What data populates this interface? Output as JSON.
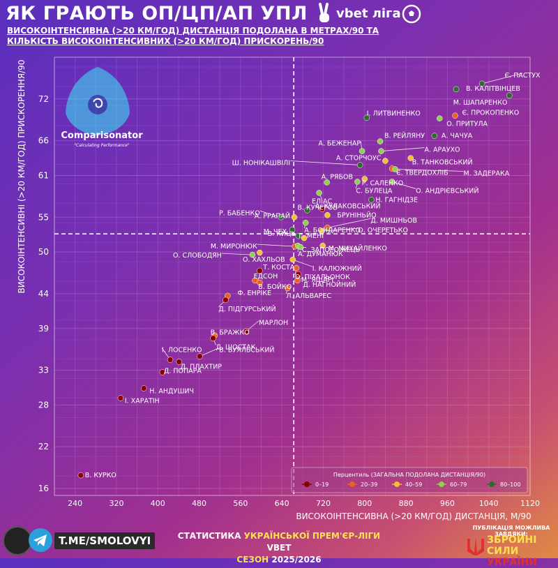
{
  "header": {
    "title": "ЯК ГРАЮТЬ ОП/ЦП/АП  УПЛ",
    "brand": "vbet ліга",
    "subtitle_line1": "ВИСОКОІНТЕНСИВНА (>20 КМ/ГОД) ДИСТАНЦІЯ ПОДОЛАНА В МЕТРАХ/90 ТА",
    "subtitle_line2": "КІЛЬКІСТЬ ВИСОКОІНТЕНСИВНИХ (>20 КМ/ГОД) ПРИСКОРЕНЬ/90"
  },
  "watermark": {
    "name": "Comparisonator",
    "tagline": "\"Calculating Performance\""
  },
  "footer": {
    "link": "T.ME/SMOLOVYI",
    "stats_prefix": "СТАТИСТИКА",
    "stats_middle": " УКРАЇНСЬКОЇ ПРЕМ'ЄР-ЛІГИ ",
    "stats_suffix": "VBET",
    "season_prefix": "СЕЗОН ",
    "season": "2025/2026",
    "support_text": "ПУБЛІКАЦІЯ МОЖЛИВА ЗАВДЯКИ:",
    "army_line1": "ЗБРОЙНІ СИЛИ",
    "army_line2": "УКРАЇНИ"
  },
  "colors": {
    "p0": "#8b0000",
    "p20": "#e8641e",
    "p40": "#f2c12e",
    "p60": "#8fd14f",
    "p80": "#2e6b2e"
  },
  "chart_data": {
    "type": "scatter",
    "xlabel": "ВИСОКОІНТЕНСИВНА (>20 КМ/ГОД) ДИСТАНЦІЯ, М/90",
    "ylabel": "ВИСОКОІНТЕНСИВНІ (>20 КМ/ГОД) ПРИСКОРЕННЯ/90",
    "xlim": [
      200,
      1120
    ],
    "ylim": [
      15,
      78
    ],
    "xticks": [
      240,
      320,
      400,
      480,
      560,
      640,
      720,
      800,
      880,
      960,
      1040,
      1120
    ],
    "yticks": [
      16,
      22,
      28,
      33,
      39,
      44,
      50,
      55,
      61,
      66,
      72
    ],
    "x_mean": 663,
    "y_mean": 52.6,
    "legend_title": "Перцентиль (ЗАГАЛЬНА ПОДОЛАНА ДИСТАНЦІЯ/90)",
    "legend": [
      {
        "label": "0–19",
        "key": "p0"
      },
      {
        "label": "20–39",
        "key": "p20"
      },
      {
        "label": "40–59",
        "key": "p40"
      },
      {
        "label": "60–79",
        "key": "p60"
      },
      {
        "label": "80–100",
        "key": "p80"
      }
    ],
    "points": [
      {
        "name": "Є. ПАСТУХ",
        "x": 1027,
        "y": 74.2,
        "p": "p80"
      },
      {
        "name": "В. КАЛІТВІНЦЕВ",
        "x": 977,
        "y": 73.4,
        "p": "p80"
      },
      {
        "name": "М. ШАПАРЕНКО",
        "x": 1080,
        "y": 72.5,
        "p": "p80"
      },
      {
        "name": "Є. ПРОКОПЕНКО",
        "x": 975,
        "y": 69.6,
        "p": "p20"
      },
      {
        "name": "І. ЛИТВИНЕНКО",
        "x": 804,
        "y": 69.3,
        "p": "p80"
      },
      {
        "name": "О. ПРИТУЛА",
        "x": 945,
        "y": 69.2,
        "p": "p60"
      },
      {
        "name": "А. ЧАЧУА",
        "x": 935,
        "y": 66.7,
        "p": "p80"
      },
      {
        "name": "В. РЕЙЛЯНУ",
        "x": 830,
        "y": 65.9,
        "p": "p60"
      },
      {
        "name": "А. БЕЖЕНАР",
        "x": 795,
        "y": 64.5,
        "p": "p60"
      },
      {
        "name": "А. АРАУХО",
        "x": 832,
        "y": 64.5,
        "p": "p60"
      },
      {
        "name": "А. СТОРЧОУС",
        "x": 840,
        "y": 63.1,
        "p": "p40"
      },
      {
        "name": "В. ТАНКОВСЬКИЙ",
        "x": 889,
        "y": 63.5,
        "p": "p40"
      },
      {
        "name": "Є. ТВЕРДОХЛІБ",
        "x": 853,
        "y": 62.0,
        "p": "p20"
      },
      {
        "name": "М. ЗАДЕРАКА",
        "x": 859,
        "y": 61.9,
        "p": "p60"
      },
      {
        "name": "Ш. НОНІКАШВІЛІ",
        "x": 791,
        "y": 62.5,
        "p": "p80"
      },
      {
        "name": "Р. САЛЕНКО",
        "x": 800,
        "y": 60.5,
        "p": "p40"
      },
      {
        "name": "С. БУЛЕЦА",
        "x": 786,
        "y": 60.1,
        "p": "p60"
      },
      {
        "name": "А. РЯБОВ",
        "x": 727,
        "y": 60.0,
        "p": "p60"
      },
      {
        "name": "О. АНДРІЄВСЬКИЙ",
        "x": 853,
        "y": 60.1,
        "p": "p60"
      },
      {
        "name": "ЕЛІАС",
        "x": 712,
        "y": 58.5,
        "p": "p60"
      },
      {
        "name": "Н. ГАГНІДЗЕ",
        "x": 813,
        "y": 57.5,
        "p": "p80"
      },
      {
        "name": "В. КУЧЕРОВ",
        "x": 689,
        "y": 56.0,
        "p": "p80"
      },
      {
        "name": "А. КУЛАКОВСЬКИЙ",
        "x": 718,
        "y": 56.2,
        "p": "p0"
      },
      {
        "name": "Р. БАБЕНКО",
        "x": 638,
        "y": 55.0,
        "p": "p80"
      },
      {
        "name": "А. РРАПАЙ",
        "x": 664,
        "y": 55.0,
        "p": "p40"
      },
      {
        "name": "БРУНІНЬЙО",
        "x": 728,
        "y": 55.3,
        "p": "p40"
      },
      {
        "name": "А. БОНДАРЕНКО",
        "x": 686,
        "y": 54.2,
        "p": "p60"
      },
      {
        "name": "Д. МИШНЬОВ",
        "x": 728,
        "y": 53.5,
        "p": "p20"
      },
      {
        "name": "М. ЧЕХ",
        "x": 660,
        "y": 53.2,
        "p": "p80"
      },
      {
        "name": "О. ОЧЕРЕТЬКО",
        "x": 717,
        "y": 53.0,
        "p": "p40"
      },
      {
        "name": "В. КИЦЬ",
        "x": 672,
        "y": 52.3,
        "p": "p80"
      },
      {
        "name": "Г. МЕНІ",
        "x": 683,
        "y": 52.0,
        "p": "p40"
      },
      {
        "name": "М. МИРОНЮК",
        "x": 665,
        "y": 50.8,
        "p": "p20"
      },
      {
        "name": "А. ДУМАНЮК",
        "x": 671,
        "y": 50.9,
        "p": "p60"
      },
      {
        "name": "С. ЗАПОРОЖЕЦЬ",
        "x": 676,
        "y": 50.7,
        "p": "p60"
      },
      {
        "name": "М. МИХАЙЛЕНКО",
        "x": 719,
        "y": 50.9,
        "p": "p40"
      },
      {
        "name": "О. СЛОБОДЯН",
        "x": 583,
        "y": 49.6,
        "p": "p60"
      },
      {
        "name": "О. ХАХЛЬОВ",
        "x": 597,
        "y": 49.9,
        "p": "p40"
      },
      {
        "name": "І. КАЛЮЖНИЙ",
        "x": 661,
        "y": 48.9,
        "p": "p40"
      },
      {
        "name": "Т. КОСТА",
        "x": 597,
        "y": 47.3,
        "p": "p0"
      },
      {
        "name": "О. ПІХАЛЬОНОК",
        "x": 668,
        "y": 47.7,
        "p": "p20"
      },
      {
        "name": "ЕДСОН",
        "x": 588,
        "y": 45.9,
        "p": "p20"
      },
      {
        "name": "М. ЯЩАРІ",
        "x": 672,
        "y": 46.8,
        "p": "p0"
      },
      {
        "name": "В. БОЙКО",
        "x": 597,
        "y": 45.6,
        "p": "p20"
      },
      {
        "name": "Д. НАГНОЙНИЙ",
        "x": 670,
        "y": 45.9,
        "p": "p20"
      },
      {
        "name": "Л. АЛЬВАРЕС",
        "x": 651,
        "y": 44.8,
        "p": "p20"
      },
      {
        "name": "Ф. ЕНРІКЕ",
        "x": 535,
        "y": 43.7,
        "p": "p20"
      },
      {
        "name": "Д. ПІДГУРСЬКИЙ",
        "x": 531,
        "y": 43.1,
        "p": "p0"
      },
      {
        "name": "МАРЛОН",
        "x": 571,
        "y": 38.6,
        "p": "p0"
      },
      {
        "name": "В. БРАЖКО",
        "x": 510,
        "y": 38.0,
        "p": "p20"
      },
      {
        "name": "Д. ШОСТАК",
        "x": 507,
        "y": 37.6,
        "p": "p0"
      },
      {
        "name": "В. БУЯЛЬСЬКИЙ",
        "x": 481,
        "y": 35.0,
        "p": "p0"
      },
      {
        "name": "І. ЛОСЕНКО",
        "x": 424,
        "y": 34.5,
        "p": "p0"
      },
      {
        "name": "Д. ПЛАХТИР",
        "x": 441,
        "y": 34.2,
        "p": "p0"
      },
      {
        "name": "Д. ПОПАРА",
        "x": 409,
        "y": 32.7,
        "p": "p0"
      },
      {
        "name": "Н. АНДУШИЧ",
        "x": 373,
        "y": 30.4,
        "p": "p0"
      },
      {
        "name": "І. ХАРАТІН",
        "x": 328,
        "y": 29.0,
        "p": "p0"
      },
      {
        "name": "В. КУРКО",
        "x": 251,
        "y": 17.9,
        "p": "p0"
      }
    ]
  }
}
